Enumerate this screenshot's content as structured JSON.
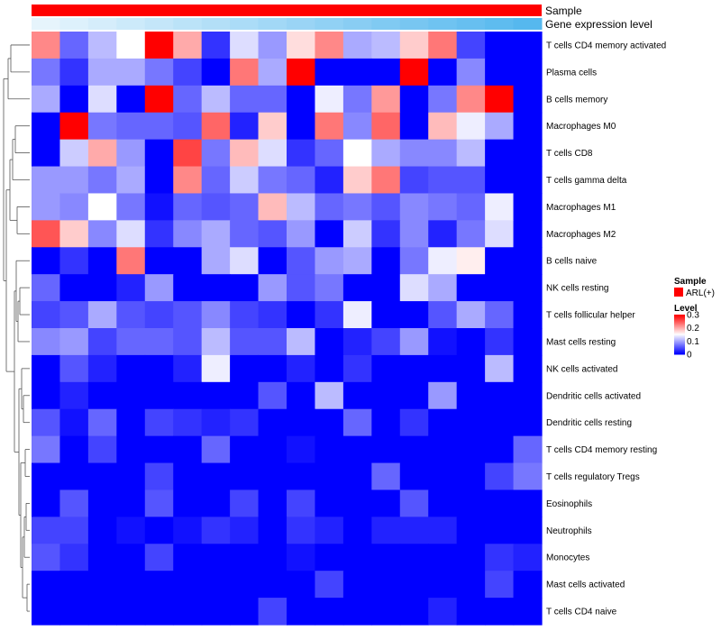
{
  "chart_data": {
    "type": "heatmap",
    "title": "",
    "annotation_tracks": [
      {
        "name": "Sample",
        "kind": "solid",
        "color": "#ff0000"
      },
      {
        "name": "Gene expression level",
        "kind": "gradient",
        "from": "#ffffff",
        "to": "#56b8ee"
      }
    ],
    "rows": [
      "T cells CD4 memory activated",
      "Plasma cells",
      "B cells memory",
      "Macrophages M0",
      "T cells CD8",
      "T cells gamma delta",
      "Macrophages M1",
      "Macrophages M2",
      "B cells naive",
      "NK cells resting",
      "T cells follicular helper",
      "Mast cells resting",
      "NK cells activated",
      "Dendritic cells activated",
      "Dendritic cells resting",
      "T cells CD4 memory resting",
      "T cells regulatory  Tregs",
      "Eosinophils",
      "Neutrophils",
      "Monocytes",
      "Mast cells activated",
      "T cells CD4 naive"
    ],
    "columns": 18,
    "values": [
      [
        0.22,
        0.06,
        0.11,
        0.15,
        0.3,
        0.2,
        0.03,
        0.13,
        0.09,
        0.17,
        0.22,
        0.1,
        0.11,
        0.18,
        0.23,
        0.04,
        0.0,
        0.0
      ],
      [
        0.07,
        0.03,
        0.1,
        0.1,
        0.07,
        0.04,
        0.0,
        0.23,
        0.1,
        0.3,
        0.0,
        0.0,
        0.0,
        0.3,
        0.0,
        0.08,
        0.0,
        0.0
      ],
      [
        0.1,
        0.0,
        0.13,
        0.0,
        0.3,
        0.06,
        0.11,
        0.06,
        0.06,
        0.0,
        0.14,
        0.07,
        0.21,
        0.0,
        0.07,
        0.22,
        0.3,
        0.0
      ],
      [
        0.0,
        0.3,
        0.07,
        0.06,
        0.06,
        0.05,
        0.24,
        0.02,
        0.18,
        0.0,
        0.23,
        0.08,
        0.24,
        0.0,
        0.19,
        0.14,
        0.1,
        0.0
      ],
      [
        0.0,
        0.12,
        0.2,
        0.09,
        0.0,
        0.26,
        0.07,
        0.19,
        0.13,
        0.03,
        0.06,
        0.15,
        0.1,
        0.08,
        0.08,
        0.11,
        0.0,
        0.0
      ],
      [
        0.09,
        0.09,
        0.07,
        0.1,
        0.0,
        0.22,
        0.06,
        0.12,
        0.07,
        0.06,
        0.02,
        0.18,
        0.23,
        0.04,
        0.05,
        0.05,
        0.0,
        0.0
      ],
      [
        0.09,
        0.08,
        0.15,
        0.07,
        0.01,
        0.06,
        0.05,
        0.06,
        0.19,
        0.11,
        0.06,
        0.07,
        0.05,
        0.08,
        0.07,
        0.06,
        0.14,
        0.0
      ],
      [
        0.25,
        0.18,
        0.08,
        0.13,
        0.03,
        0.08,
        0.1,
        0.06,
        0.05,
        0.09,
        0.0,
        0.12,
        0.03,
        0.08,
        0.02,
        0.07,
        0.13,
        0.0
      ],
      [
        0.0,
        0.03,
        0.0,
        0.23,
        0.0,
        0.0,
        0.1,
        0.13,
        0.0,
        0.05,
        0.09,
        0.1,
        0.0,
        0.07,
        0.14,
        0.16,
        0.0,
        0.0
      ],
      [
        0.06,
        0.0,
        0.0,
        0.02,
        0.09,
        0.0,
        0.0,
        0.0,
        0.09,
        0.05,
        0.07,
        0.0,
        0.0,
        0.13,
        0.1,
        0.0,
        0.0,
        0.0
      ],
      [
        0.04,
        0.05,
        0.1,
        0.05,
        0.04,
        0.05,
        0.08,
        0.04,
        0.03,
        0.0,
        0.03,
        0.14,
        0.0,
        0.0,
        0.05,
        0.1,
        0.06,
        0.0
      ],
      [
        0.08,
        0.09,
        0.04,
        0.06,
        0.06,
        0.05,
        0.11,
        0.05,
        0.05,
        0.11,
        0.0,
        0.02,
        0.04,
        0.09,
        0.01,
        0.0,
        0.03,
        0.0
      ],
      [
        0.0,
        0.05,
        0.02,
        0.0,
        0.0,
        0.02,
        0.14,
        0.0,
        0.0,
        0.02,
        0.0,
        0.03,
        0.0,
        0.0,
        0.0,
        0.0,
        0.11,
        0.0
      ],
      [
        0.0,
        0.02,
        0.0,
        0.0,
        0.0,
        0.0,
        0.0,
        0.0,
        0.05,
        0.0,
        0.11,
        0.0,
        0.0,
        0.0,
        0.09,
        0.0,
        0.0,
        0.0
      ],
      [
        0.05,
        0.01,
        0.06,
        0.0,
        0.04,
        0.03,
        0.02,
        0.03,
        0.0,
        0.0,
        0.0,
        0.06,
        0.0,
        0.03,
        0.0,
        0.0,
        0.0,
        0.0
      ],
      [
        0.07,
        0.0,
        0.04,
        0.0,
        0.0,
        0.0,
        0.06,
        0.0,
        0.0,
        0.01,
        0.0,
        0.0,
        0.0,
        0.0,
        0.0,
        0.0,
        0.0,
        0.06
      ],
      [
        0.0,
        0.0,
        0.0,
        0.0,
        0.04,
        0.0,
        0.0,
        0.0,
        0.0,
        0.0,
        0.0,
        0.0,
        0.06,
        0.0,
        0.0,
        0.0,
        0.04,
        0.07
      ],
      [
        0.0,
        0.05,
        0.0,
        0.0,
        0.05,
        0.0,
        0.0,
        0.04,
        0.0,
        0.04,
        0.0,
        0.0,
        0.0,
        0.05,
        0.0,
        0.0,
        0.0,
        0.0
      ],
      [
        0.04,
        0.04,
        0.0,
        0.01,
        0.0,
        0.01,
        0.03,
        0.02,
        0.0,
        0.03,
        0.02,
        0.0,
        0.02,
        0.02,
        0.02,
        0.0,
        0.0,
        0.0
      ],
      [
        0.05,
        0.03,
        0.0,
        0.0,
        0.04,
        0.0,
        0.0,
        0.0,
        0.0,
        0.01,
        0.0,
        0.0,
        0.0,
        0.0,
        0.0,
        0.0,
        0.03,
        0.02
      ],
      [
        0.0,
        0.0,
        0.0,
        0.0,
        0.0,
        0.0,
        0.0,
        0.0,
        0.0,
        0.0,
        0.04,
        0.0,
        0.0,
        0.0,
        0.0,
        0.0,
        0.04,
        0.0
      ],
      [
        0.0,
        0.0,
        0.0,
        0.0,
        0.0,
        0.0,
        0.0,
        0.0,
        0.04,
        0.0,
        0.0,
        0.0,
        0.0,
        0.0,
        0.02,
        0.0,
        0.0,
        0.0
      ]
    ],
    "color_scale": {
      "min": 0,
      "mid": 0.15,
      "max": 0.3,
      "low": "#0000ff",
      "midcolor": "#ffffff",
      "high": "#ff0000"
    },
    "dendrogram_order": [
      0,
      1,
      2,
      3,
      4,
      5,
      6,
      7,
      8,
      9,
      10,
      11,
      12,
      13,
      14,
      15,
      16,
      17,
      18,
      19,
      20,
      21
    ],
    "legend": {
      "sample_title": "Sample",
      "sample_entry": "ARL(+)",
      "level_title": "Level",
      "level_ticks": [
        "0.3",
        "0.2",
        "0.1",
        "0"
      ]
    }
  }
}
